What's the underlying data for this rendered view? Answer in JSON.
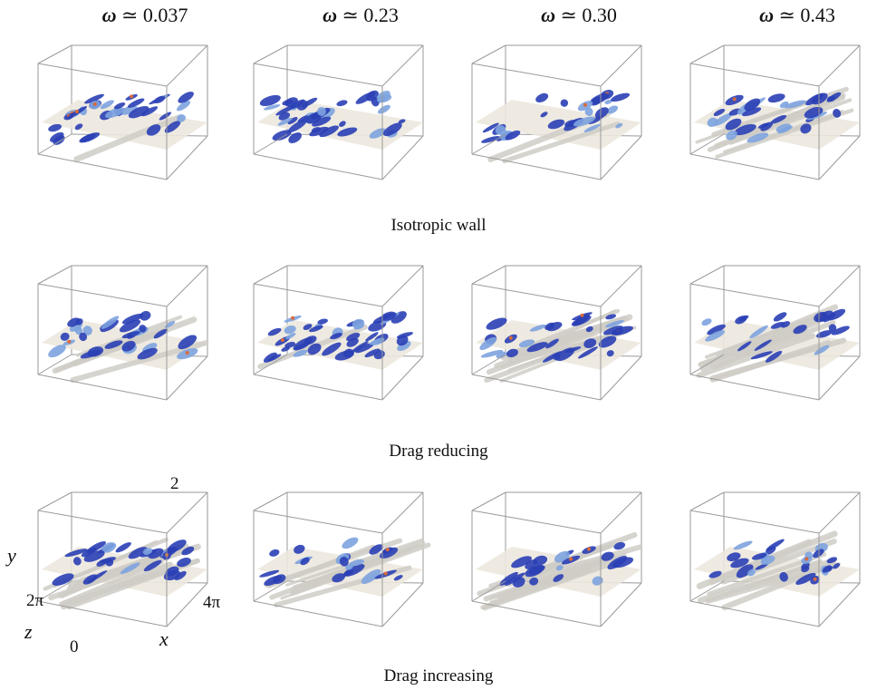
{
  "columns": [
    {
      "symbol": "ω",
      "value": "≃ 0.037"
    },
    {
      "symbol": "ω",
      "value": "≃ 0.23"
    },
    {
      "symbol": "ω",
      "value": "≃ 0.30"
    },
    {
      "symbol": "ω",
      "value": "≃ 0.43"
    }
  ],
  "rows": [
    {
      "caption": "Isotropic wall"
    },
    {
      "caption": "Drag reducing"
    },
    {
      "caption": "Drag increasing"
    }
  ],
  "axes": {
    "y_label": "y",
    "y_max": "2",
    "z_label": "z",
    "z_max": "2π",
    "x_label": "x",
    "x_max": "4π",
    "origin": "0"
  },
  "colors": {
    "vortex_blue": "#2a3fb5",
    "vortex_light": "#7da3df",
    "streak_grey": "#cfcdc6",
    "wall_beige": "#ece8de",
    "box_edge": "#9a9a9a",
    "hot_spot": "#d86a3c"
  }
}
